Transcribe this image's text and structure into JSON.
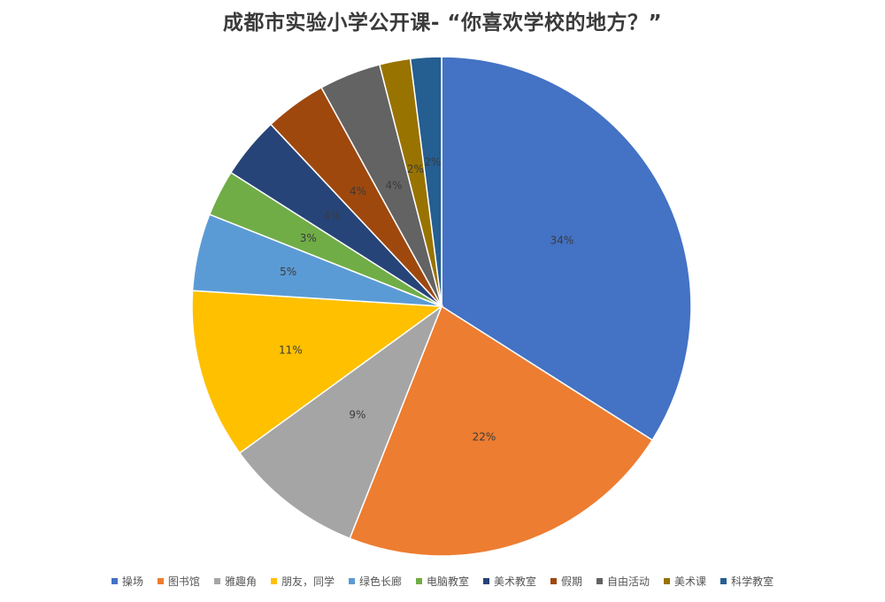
{
  "chart_data": {
    "type": "pie",
    "title": "成都市实验小学公开课- “你喜欢学校的地方？”",
    "categories": [
      "操场",
      "图书馆",
      "雅趣角",
      "朋友，同学",
      "绿色长廊",
      "电脑教室",
      "美术教室",
      "假期",
      "自由活动",
      "美术课",
      "科学教室"
    ],
    "values": [
      34,
      22,
      9,
      11,
      5,
      3,
      4,
      4,
      4,
      2,
      2
    ],
    "labels": [
      "34%",
      "22%",
      "9%",
      "11%",
      "5%",
      "3%",
      "4%",
      "4%",
      "4%",
      "2%",
      "2%"
    ],
    "colors": [
      "#4472C4",
      "#ED7D31",
      "#A5A5A5",
      "#FFC000",
      "#5B9BD5",
      "#70AD47",
      "#264478",
      "#9E480E",
      "#636363",
      "#997300",
      "#255E91"
    ],
    "legend_position": "bottom",
    "direction": "clockwise",
    "start": "12 o'clock"
  }
}
